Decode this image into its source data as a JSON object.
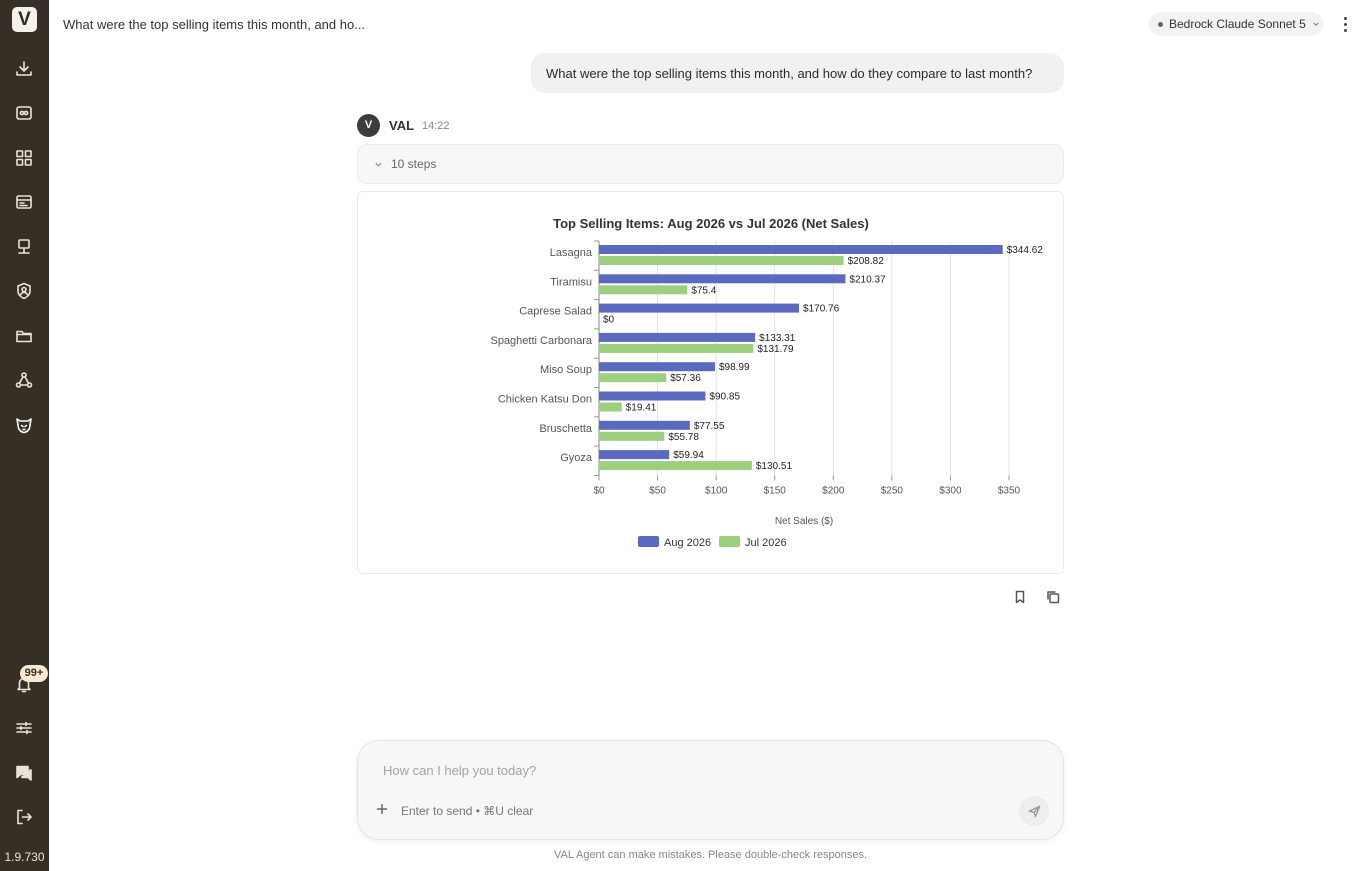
{
  "sidebar": {
    "logo": "V",
    "items": [
      {
        "name": "download-icon"
      },
      {
        "name": "agents-icon"
      },
      {
        "name": "dashboard-icon"
      },
      {
        "name": "reports-icon"
      },
      {
        "name": "kiosk-icon"
      },
      {
        "name": "shield-user-icon"
      },
      {
        "name": "folder-icon"
      },
      {
        "name": "network-icon"
      },
      {
        "name": "val-mascot-icon"
      }
    ],
    "notifications_badge": "99+",
    "version": "1.9.730"
  },
  "header": {
    "title": "What were the top selling items this month, and ho...",
    "model": "Bedrock Claude Sonnet 5"
  },
  "conversation": {
    "user_message": "What were the top selling items this month, and how do they compare to last month?",
    "assistant": {
      "avatar": "V",
      "name": "VAL",
      "time": "14:22",
      "steps_label": "10 steps"
    }
  },
  "chart_data": {
    "type": "bar",
    "orientation": "horizontal",
    "title": "Top Selling Items: Aug 2026 vs Jul 2026 (Net Sales)",
    "xlabel": "Net Sales ($)",
    "ylabel": "",
    "categories": [
      "Lasagna",
      "Tiramisu",
      "Caprese Salad",
      "Spaghetti Carbonara",
      "Miso Soup",
      "Chicken Katsu Don",
      "Bruschetta",
      "Gyoza"
    ],
    "series": [
      {
        "name": "Aug 2026",
        "color": "#5b6abf",
        "values": [
          344.62,
          210.37,
          170.76,
          133.31,
          98.99,
          90.85,
          77.55,
          59.94
        ],
        "labels": [
          "$344.62",
          "$210.37",
          "$170.76",
          "$133.31",
          "$98.99",
          "$90.85",
          "$77.55",
          "$59.94"
        ]
      },
      {
        "name": "Jul 2026",
        "color": "#9dd07e",
        "values": [
          208.82,
          75.4,
          0,
          131.79,
          57.36,
          19.41,
          55.78,
          130.51
        ],
        "labels": [
          "$208.82",
          "$75.4",
          "$0",
          "$131.79",
          "$57.36",
          "$19.41",
          "$55.78",
          "$130.51"
        ]
      }
    ],
    "xlim": [
      0,
      350
    ],
    "xticks": [
      0,
      50,
      100,
      150,
      200,
      250,
      300,
      350
    ],
    "xtick_labels": [
      "$0",
      "$50",
      "$100",
      "$150",
      "$200",
      "$250",
      "$300",
      "$350"
    ],
    "grid": true,
    "legend": "bottom"
  },
  "composer": {
    "placeholder": "How can I help you today?",
    "hint": "Enter to send • ⌘U clear",
    "disclaimer": "VAL Agent can make mistakes. Please double-check responses."
  }
}
